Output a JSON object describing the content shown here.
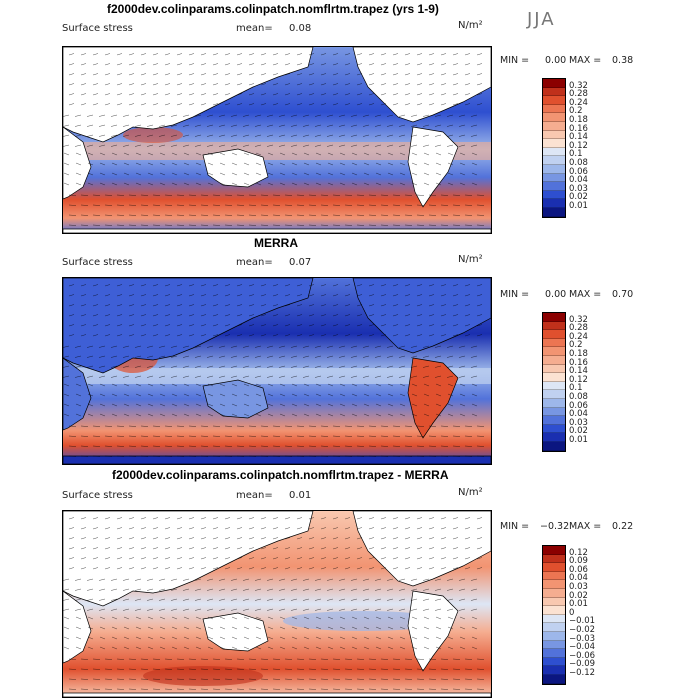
{
  "season": "JJA",
  "units": "N/m²",
  "panels": [
    {
      "id": "model",
      "title": "f2000dev.colinparams.colinpatch.nomflrtm.trapez (yrs 1-9)",
      "variable": "Surface stress",
      "mean_label": "mean=",
      "mean_value": "0.08",
      "min_label": "MIN =",
      "min_value": "0.00",
      "max_label": "MAX =",
      "max_value": "0.38",
      "colorbar_labels": [
        "0.32",
        "0.28",
        "0.24",
        "0.2",
        "0.18",
        "0.16",
        "0.14",
        "0.12",
        "0.1",
        "0.08",
        "0.06",
        "0.04",
        "0.03",
        "0.02",
        "0.01"
      ],
      "colorbar_colors": [
        "#8b0000",
        "#c0301b",
        "#e0502e",
        "#ec7552",
        "#f29472",
        "#f5ad90",
        "#f8c8b0",
        "#fbe2d2",
        "#dde6f5",
        "#c0d1f0",
        "#9db7ea",
        "#7896e2",
        "#5272da",
        "#2e4fd0",
        "#1a2fb0",
        "#0b1680"
      ]
    },
    {
      "id": "obs",
      "title": "MERRA",
      "variable": "Surface stress",
      "mean_label": "mean=",
      "mean_value": "0.07",
      "min_label": "MIN =",
      "min_value": "0.00",
      "max_label": "MAX =",
      "max_value": "0.70",
      "colorbar_labels": [
        "0.32",
        "0.28",
        "0.24",
        "0.2",
        "0.18",
        "0.16",
        "0.14",
        "0.12",
        "0.1",
        "0.08",
        "0.06",
        "0.04",
        "0.03",
        "0.02",
        "0.01"
      ],
      "colorbar_colors": [
        "#8b0000",
        "#c0301b",
        "#e0502e",
        "#ec7552",
        "#f29472",
        "#f5ad90",
        "#f8c8b0",
        "#fbe2d2",
        "#dde6f5",
        "#c0d1f0",
        "#9db7ea",
        "#7896e2",
        "#5272da",
        "#2e4fd0",
        "#1a2fb0",
        "#0b1680"
      ]
    },
    {
      "id": "diff",
      "title": "f2000dev.colinparams.colinpatch.nomflrtm.trapez - MERRA",
      "variable": "Surface stress",
      "mean_label": "mean=",
      "mean_value": "0.01",
      "min_label": "MIN =",
      "min_value": "−0.32",
      "max_label": "MAX =",
      "max_value": "0.22",
      "colorbar_labels": [
        "0.12",
        "0.09",
        "0.06",
        "0.04",
        "0.03",
        "0.02",
        "0.01",
        "0",
        "−0.01",
        "−0.02",
        "−0.03",
        "−0.04",
        "−0.06",
        "−0.09",
        "−0.12"
      ],
      "colorbar_colors": [
        "#8b0000",
        "#c0301b",
        "#e0502e",
        "#ec7552",
        "#f29472",
        "#f5ad90",
        "#f8c8b0",
        "#fbe2d2",
        "#dde6f5",
        "#c0d1f0",
        "#9db7ea",
        "#7896e2",
        "#5272da",
        "#2e4fd0",
        "#1a2fb0",
        "#0b1680"
      ]
    }
  ]
}
